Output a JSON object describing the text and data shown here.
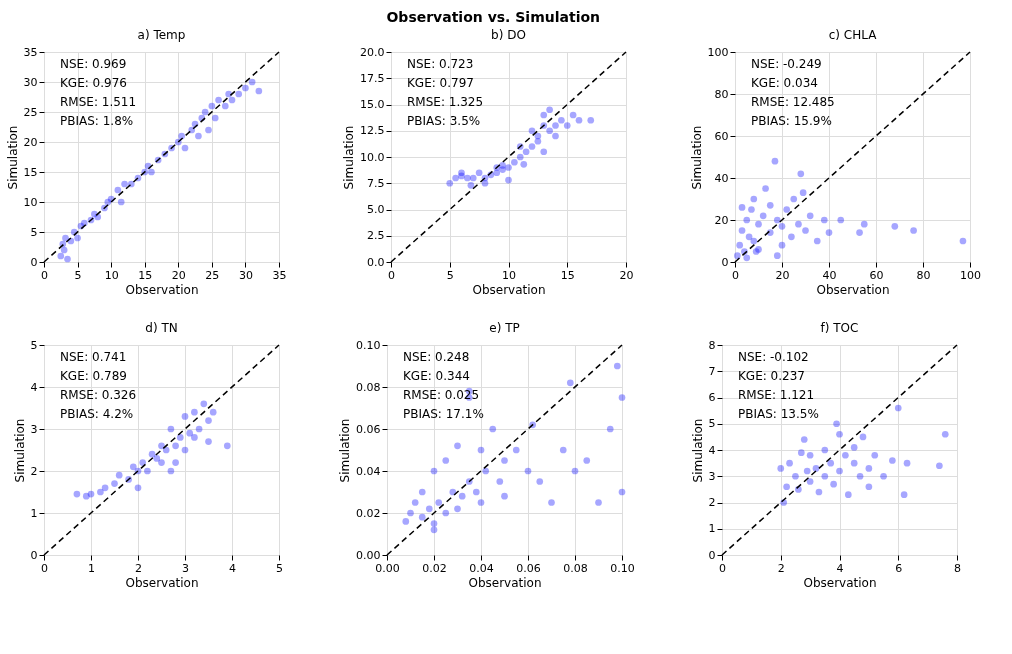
{
  "chart_data": [
    {
      "type": "scatter",
      "title": "a) Temp",
      "xlabel": "Observation",
      "ylabel": "Simulation",
      "grid": true,
      "xlim": [
        0,
        35
      ],
      "ylim": [
        0,
        35
      ],
      "xticks": [
        0,
        5,
        10,
        15,
        20,
        25,
        30,
        35
      ],
      "yticks": [
        0,
        5,
        10,
        15,
        20,
        25,
        30,
        35
      ],
      "annotations": [
        "Observation vs. Simulation",
        "NSE:  0.969",
        "KGE:  0.976",
        "RMSE:  1.511",
        "PBIAS:  1.8%"
      ],
      "series": [
        {
          "color": "#0000ff",
          "marker": "circle",
          "x": [
            2.5,
            2.8,
            3.0,
            3.2,
            3.5,
            4,
            4.5,
            5,
            5.5,
            6,
            7,
            7.5,
            8,
            9,
            9.5,
            10,
            11,
            11.5,
            12,
            13,
            14,
            15,
            15.5,
            16,
            17,
            18,
            19,
            20,
            20.5,
            21,
            22,
            22.5,
            23,
            23.5,
            24,
            24.5,
            25,
            25.5,
            26,
            27,
            27.5,
            28,
            29,
            30,
            31,
            32
          ],
          "values": [
            1,
            3,
            2,
            4,
            0.5,
            3.5,
            5,
            4,
            6,
            6.5,
            7,
            8,
            7.5,
            9,
            10,
            10.5,
            12,
            10,
            13,
            13,
            14,
            15,
            16,
            15,
            17,
            18,
            19,
            20,
            21,
            19,
            22,
            23,
            21,
            24,
            25,
            22,
            26,
            24,
            27,
            26,
            28,
            27,
            28,
            29,
            30,
            28.5
          ]
        },
        {
          "type": "line",
          "line_style": "dashed",
          "color": "#000000",
          "x": [
            0,
            35
          ],
          "values": [
            0,
            35
          ]
        }
      ]
    },
    {
      "type": "scatter",
      "title": "b) DO",
      "xlabel": "Observation",
      "ylabel": "Simulation",
      "grid": true,
      "xlim": [
        0,
        20
      ],
      "ylim": [
        0,
        20
      ],
      "xticks": [
        0,
        5,
        10,
        15,
        20
      ],
      "yticks": [
        {
          "value": 0,
          "label": "0.0"
        },
        {
          "value": 2.5,
          "label": "2.5"
        },
        {
          "value": 5,
          "label": "5.0"
        },
        {
          "value": 7.5,
          "label": "7.5"
        },
        {
          "value": 10,
          "label": "10.0"
        },
        {
          "value": 12.5,
          "label": "12.5"
        },
        {
          "value": 15,
          "label": "15.0"
        },
        {
          "value": 17.5,
          "label": "17.5"
        },
        {
          "value": 20,
          "label": "20.0"
        }
      ],
      "annotations": [
        "NSE:  0.723",
        "KGE:  0.797",
        "RMSE:  1.325",
        "PBIAS:  3.5%"
      ],
      "series": [
        {
          "color": "#0000ff",
          "marker": "circle",
          "x": [
            5,
            5.5,
            6,
            6.5,
            7,
            7.5,
            8,
            8,
            8.5,
            9,
            9,
            9.5,
            10,
            10,
            10.5,
            11,
            11,
            11.5,
            12,
            12,
            12.5,
            13,
            13,
            13,
            13.5,
            13.5,
            14,
            14,
            14.5,
            15,
            15.5,
            16,
            17,
            6,
            6.8,
            9.5,
            11.3,
            12.5
          ],
          "values": [
            7.5,
            8,
            8.2,
            8,
            8,
            8.5,
            8,
            7.5,
            8.3,
            8.5,
            9,
            8.8,
            9,
            7.8,
            9.5,
            10,
            11,
            10.5,
            11,
            12.5,
            12,
            13,
            14,
            10.5,
            12.5,
            14.5,
            13,
            12,
            13.5,
            13,
            14,
            13.5,
            13.5,
            8.5,
            7.3,
            9.2,
            9.3,
            11.5
          ]
        },
        {
          "type": "line",
          "line_style": "dashed",
          "color": "#000000",
          "x": [
            0,
            20
          ],
          "values": [
            0,
            20
          ]
        }
      ]
    },
    {
      "type": "scatter",
      "title": "c) CHLA",
      "xlabel": "Observation",
      "ylabel": "Simulation",
      "grid": true,
      "xlim": [
        0,
        100
      ],
      "ylim": [
        0,
        100
      ],
      "xticks": [
        0,
        20,
        40,
        60,
        80,
        100
      ],
      "yticks": [
        0,
        20,
        40,
        60,
        80,
        100
      ],
      "annotations": [
        "NSE:  -0.249",
        "KGE:  0.034",
        "RMSE:  12.485",
        "PBIAS:  15.9%"
      ],
      "series": [
        {
          "color": "#0000ff",
          "marker": "circle",
          "x": [
            1,
            2,
            3,
            4,
            5,
            5,
            6,
            7,
            8,
            8,
            10,
            10,
            12,
            13,
            15,
            15,
            17,
            18,
            20,
            20,
            22,
            24,
            25,
            27,
            28,
            30,
            32,
            35,
            38,
            40,
            45,
            53,
            55,
            68,
            76,
            97,
            18,
            29,
            3,
            9
          ],
          "values": [
            3,
            8,
            15,
            5,
            20,
            2,
            12,
            25,
            10,
            30,
            18,
            6,
            22,
            35,
            14,
            27,
            48,
            20,
            8,
            17,
            25,
            12,
            30,
            18,
            42,
            15,
            22,
            10,
            20,
            14,
            20,
            14,
            18,
            17,
            15,
            10,
            3,
            33,
            26,
            5
          ]
        },
        {
          "type": "line",
          "line_style": "dashed",
          "color": "#000000",
          "x": [
            0,
            100
          ],
          "values": [
            0,
            100
          ]
        }
      ]
    },
    {
      "type": "scatter",
      "title": "d) TN",
      "xlabel": "Observation",
      "ylabel": "Simulation",
      "grid": true,
      "xlim": [
        0,
        5
      ],
      "ylim": [
        0,
        5
      ],
      "xticks": [
        0,
        1,
        2,
        3,
        4,
        5
      ],
      "yticks": [
        0,
        1,
        2,
        3,
        4,
        5
      ],
      "annotations": [
        "NSE:  0.741",
        "KGE:  0.789",
        "RMSE:  0.326",
        "PBIAS:  4.2%"
      ],
      "series": [
        {
          "color": "#0000ff",
          "marker": "circle",
          "x": [
            0.7,
            0.9,
            1.0,
            1.2,
            1.3,
            1.5,
            1.6,
            1.8,
            1.9,
            2.0,
            2.1,
            2.2,
            2.3,
            2.4,
            2.5,
            2.5,
            2.6,
            2.7,
            2.8,
            2.8,
            2.9,
            3.0,
            3.0,
            3.1,
            3.2,
            3.3,
            3.4,
            3.5,
            3.5,
            3.6,
            3.9,
            2.0,
            2.7,
            3.2
          ],
          "values": [
            1.45,
            1.4,
            1.45,
            1.5,
            1.6,
            1.7,
            1.9,
            1.8,
            2.1,
            2.0,
            2.2,
            2.0,
            2.4,
            2.3,
            2.6,
            2.2,
            2.5,
            3.0,
            2.6,
            2.2,
            2.8,
            3.3,
            2.5,
            2.9,
            3.4,
            3.0,
            3.6,
            3.2,
            2.7,
            3.4,
            2.6,
            1.6,
            2.0,
            2.8
          ]
        },
        {
          "type": "line",
          "line_style": "dashed",
          "color": "#000000",
          "x": [
            0,
            5
          ],
          "values": [
            0,
            5
          ]
        }
      ]
    },
    {
      "type": "scatter",
      "title": "e) TP",
      "xlabel": "Observation",
      "ylabel": "Simulation",
      "grid": true,
      "xlim": [
        0,
        0.1
      ],
      "ylim": [
        0,
        0.1
      ],
      "xticks": [
        {
          "value": 0,
          "label": "0.00"
        },
        {
          "value": 0.02,
          "label": "0.02"
        },
        {
          "value": 0.04,
          "label": "0.04"
        },
        {
          "value": 0.06,
          "label": "0.06"
        },
        {
          "value": 0.08,
          "label": "0.08"
        },
        {
          "value": 0.1,
          "label": "0.10"
        }
      ],
      "yticks": [
        {
          "value": 0,
          "label": "0.00"
        },
        {
          "value": 0.02,
          "label": "0.02"
        },
        {
          "value": 0.04,
          "label": "0.04"
        },
        {
          "value": 0.06,
          "label": "0.06"
        },
        {
          "value": 0.08,
          "label": "0.08"
        },
        {
          "value": 0.1,
          "label": "0.10"
        }
      ],
      "annotations": [
        "NSE:  0.248",
        "KGE:  0.344",
        "RMSE:  0.025",
        "PBIAS:  17.1%"
      ],
      "series": [
        {
          "color": "#0000ff",
          "marker": "circle",
          "x": [
            0.008,
            0.01,
            0.012,
            0.015,
            0.015,
            0.018,
            0.02,
            0.02,
            0.022,
            0.025,
            0.025,
            0.028,
            0.03,
            0.03,
            0.032,
            0.035,
            0.035,
            0.038,
            0.04,
            0.04,
            0.042,
            0.045,
            0.048,
            0.05,
            0.05,
            0.055,
            0.06,
            0.062,
            0.065,
            0.07,
            0.075,
            0.078,
            0.08,
            0.085,
            0.09,
            0.095,
            0.098,
            0.1,
            0.1,
            0.035,
            0.02
          ],
          "values": [
            0.016,
            0.02,
            0.025,
            0.018,
            0.03,
            0.022,
            0.015,
            0.04,
            0.025,
            0.02,
            0.045,
            0.03,
            0.022,
            0.052,
            0.028,
            0.035,
            0.075,
            0.03,
            0.05,
            0.025,
            0.04,
            0.06,
            0.035,
            0.045,
            0.028,
            0.05,
            0.04,
            0.062,
            0.035,
            0.025,
            0.05,
            0.082,
            0.04,
            0.045,
            0.025,
            0.06,
            0.09,
            0.075,
            0.03,
            0.078,
            0.012
          ]
        },
        {
          "type": "line",
          "line_style": "dashed",
          "color": "#000000",
          "x": [
            0,
            0.1
          ],
          "values": [
            0,
            0.1
          ]
        }
      ]
    },
    {
      "type": "scatter",
      "title": "f) TOC",
      "xlabel": "Observation",
      "ylabel": "Simulation",
      "grid": true,
      "xlim": [
        0,
        8
      ],
      "ylim": [
        0,
        8
      ],
      "xticks": [
        0,
        2,
        4,
        6,
        8
      ],
      "yticks": [
        0,
        1,
        2,
        3,
        4,
        5,
        6,
        7,
        8
      ],
      "annotations": [
        "NSE:  -0.102",
        "KGE:  0.237",
        "RMSE:  1.121",
        "PBIAS:  13.5%"
      ],
      "series": [
        {
          "color": "#0000ff",
          "marker": "circle",
          "x": [
            2.0,
            2.1,
            2.2,
            2.3,
            2.5,
            2.6,
            2.8,
            2.9,
            3.0,
            3.0,
            3.2,
            3.3,
            3.5,
            3.5,
            3.7,
            3.8,
            4.0,
            4.0,
            4.2,
            4.3,
            4.5,
            4.5,
            4.7,
            4.8,
            5.0,
            5.0,
            5.2,
            5.5,
            5.8,
            6.0,
            6.2,
            6.3,
            7.4,
            7.6,
            2.7,
            3.9
          ],
          "values": [
            3.3,
            2.0,
            2.6,
            3.5,
            3.0,
            2.5,
            4.4,
            3.2,
            2.8,
            3.8,
            3.3,
            2.4,
            4.0,
            3.0,
            3.5,
            2.7,
            4.6,
            3.2,
            3.8,
            2.3,
            3.5,
            4.1,
            3.0,
            4.5,
            3.3,
            2.6,
            3.8,
            3.0,
            3.6,
            5.6,
            2.3,
            3.5,
            3.4,
            4.6,
            3.9,
            5.0
          ]
        },
        {
          "type": "line",
          "line_style": "dashed",
          "color": "#000000",
          "x": [
            0,
            8
          ],
          "values": [
            0,
            8
          ]
        }
      ]
    }
  ]
}
